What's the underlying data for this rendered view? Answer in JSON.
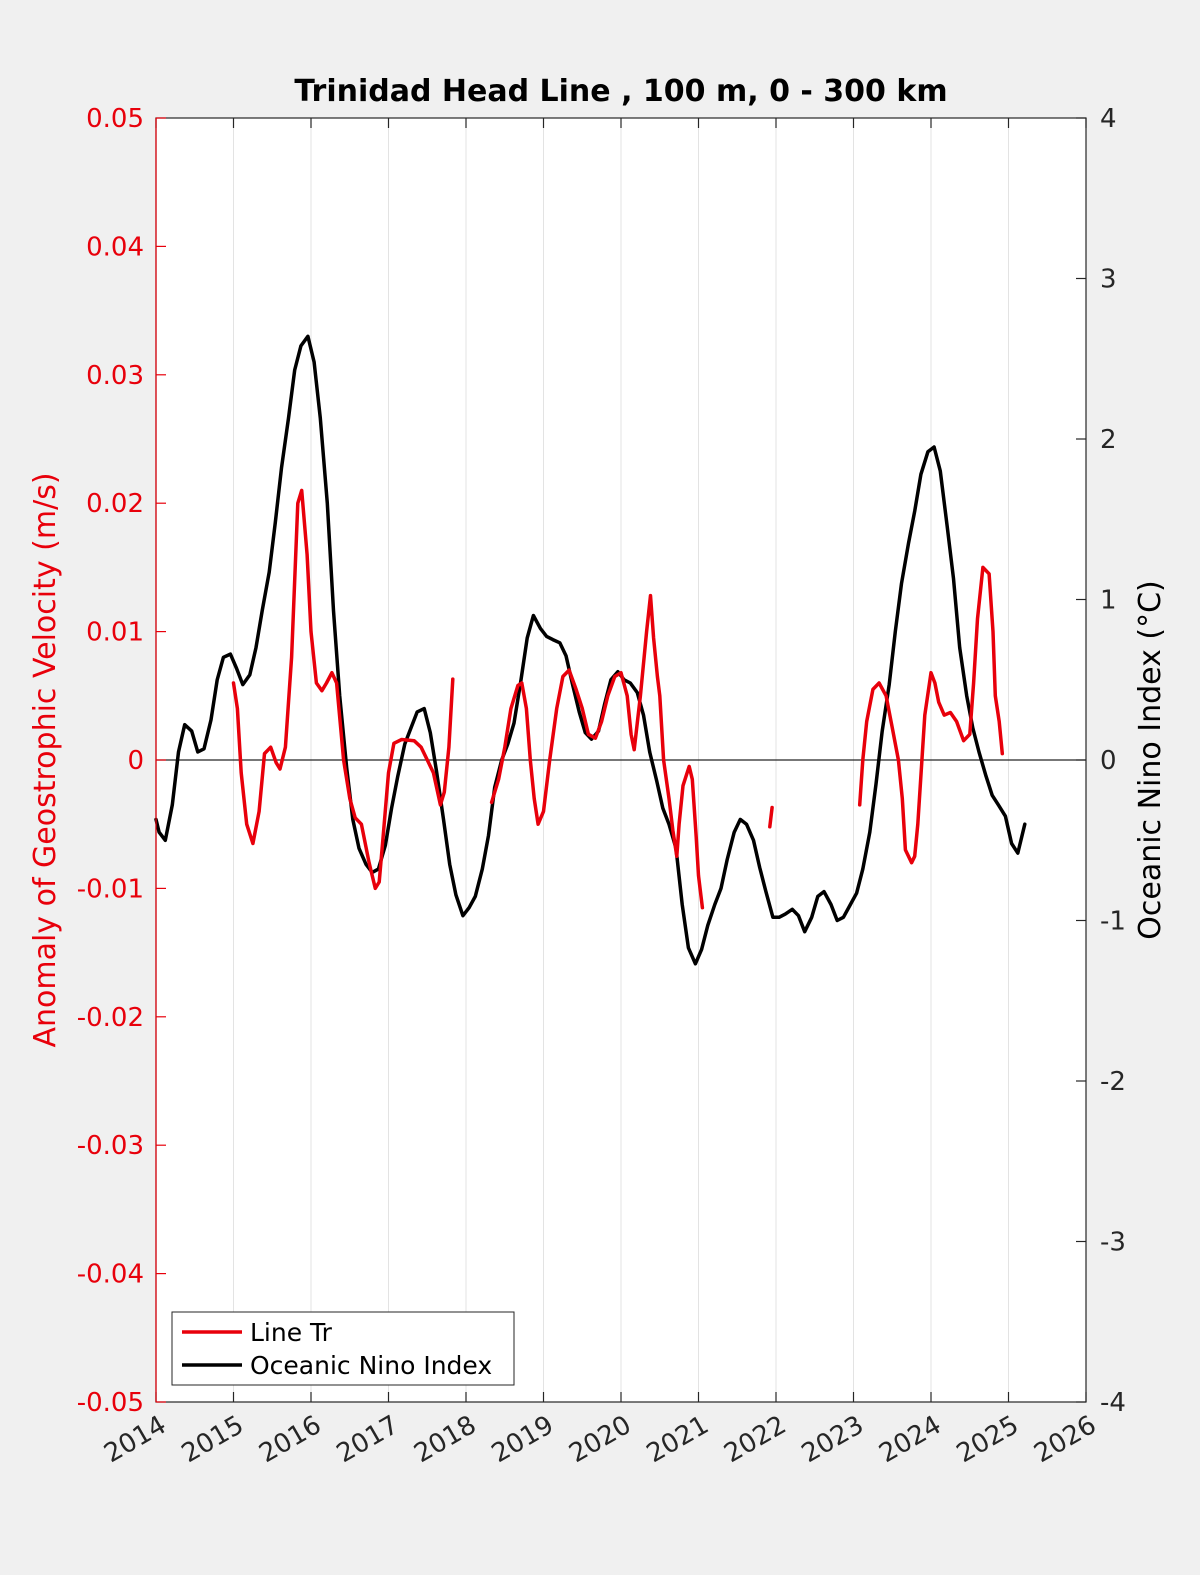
{
  "chart_data": {
    "type": "line",
    "title": "Trinidad Head Line , 100 m, 0 - 300 km",
    "xlim": [
      2014,
      2026
    ],
    "xticks": [
      "2014",
      "2015",
      "2016",
      "2017",
      "2018",
      "2019",
      "2020",
      "2021",
      "2022",
      "2023",
      "2024",
      "2025",
      "2026"
    ],
    "grid": "vertical",
    "left_axis": {
      "label": "Anomaly of Geostrophic Velocity (m/s)",
      "ylim": [
        -0.05,
        0.05
      ],
      "ticks": [
        "0.05",
        "0.04",
        "0.03",
        "0.02",
        "0.01",
        "0",
        "-0.01",
        "-0.02",
        "-0.03",
        "-0.04",
        "-0.05"
      ],
      "color": "#e8000b"
    },
    "right_axis": {
      "label": "Oceanic Nino Index (°C)",
      "ylim": [
        -4,
        4
      ],
      "ticks": [
        "4",
        "3",
        "2",
        "1",
        "0",
        "-1",
        "-2",
        "-3",
        "-4"
      ],
      "color": "#000000"
    },
    "legend": {
      "position": "bottom-left"
    },
    "series": [
      {
        "name": "Line Tr",
        "axis": "left",
        "color": "#e8000b",
        "segments": [
          [
            [
              2015.0,
              0.006
            ],
            [
              2015.05,
              0.004
            ],
            [
              2015.1,
              -0.001
            ],
            [
              2015.17,
              -0.005
            ],
            [
              2015.25,
              -0.0065
            ],
            [
              2015.33,
              -0.004
            ],
            [
              2015.4,
              0.0005
            ],
            [
              2015.48,
              0.001
            ],
            [
              2015.55,
              -0.0002
            ],
            [
              2015.6,
              -0.0007
            ],
            [
              2015.67,
              0.001
            ],
            [
              2015.75,
              0.008
            ],
            [
              2015.83,
              0.02
            ],
            [
              2015.88,
              0.021
            ],
            [
              2015.95,
              0.016
            ],
            [
              2016.0,
              0.01
            ],
            [
              2016.07,
              0.006
            ],
            [
              2016.14,
              0.0054
            ],
            [
              2016.2,
              0.006
            ],
            [
              2016.27,
              0.0068
            ],
            [
              2016.33,
              0.006
            ],
            [
              2016.42,
              0.0
            ],
            [
              2016.5,
              -0.003
            ],
            [
              2016.57,
              -0.0045
            ],
            [
              2016.65,
              -0.005
            ],
            [
              2016.75,
              -0.008
            ],
            [
              2016.83,
              -0.01
            ],
            [
              2016.88,
              -0.0095
            ],
            [
              2016.93,
              -0.006
            ],
            [
              2017.0,
              -0.001
            ],
            [
              2017.07,
              0.0013
            ],
            [
              2017.17,
              0.0016
            ],
            [
              2017.33,
              0.0015
            ],
            [
              2017.42,
              0.001
            ],
            [
              2017.5,
              0.0
            ],
            [
              2017.58,
              -0.001
            ],
            [
              2017.67,
              -0.0035
            ],
            [
              2017.72,
              -0.0025
            ],
            [
              2017.78,
              0.001
            ],
            [
              2017.83,
              0.0063
            ]
          ],
          [
            [
              2018.33,
              -0.0033
            ],
            [
              2018.42,
              -0.0015
            ],
            [
              2018.5,
              0.001
            ],
            [
              2018.58,
              0.004
            ],
            [
              2018.67,
              0.0058
            ],
            [
              2018.72,
              0.006
            ],
            [
              2018.78,
              0.004
            ],
            [
              2018.83,
              0.0
            ],
            [
              2018.88,
              -0.003
            ],
            [
              2018.93,
              -0.005
            ],
            [
              2019.0,
              -0.004
            ],
            [
              2019.08,
              0.0
            ],
            [
              2019.17,
              0.004
            ],
            [
              2019.25,
              0.0065
            ],
            [
              2019.33,
              0.007
            ],
            [
              2019.42,
              0.0055
            ],
            [
              2019.5,
              0.004
            ],
            [
              2019.58,
              0.002
            ],
            [
              2019.67,
              0.0017
            ],
            [
              2019.75,
              0.003
            ],
            [
              2019.83,
              0.005
            ],
            [
              2019.92,
              0.0065
            ],
            [
              2020.0,
              0.0068
            ],
            [
              2020.08,
              0.005
            ],
            [
              2020.13,
              0.002
            ],
            [
              2020.17,
              0.0008
            ],
            [
              2020.25,
              0.005
            ],
            [
              2020.33,
              0.01
            ],
            [
              2020.38,
              0.0128
            ],
            [
              2020.42,
              0.0095
            ],
            [
              2020.47,
              0.0065
            ],
            [
              2020.5,
              0.005
            ],
            [
              2020.55,
              0.0
            ],
            [
              2020.62,
              -0.003
            ],
            [
              2020.67,
              -0.0055
            ],
            [
              2020.72,
              -0.0075
            ],
            [
              2020.75,
              -0.005
            ],
            [
              2020.8,
              -0.002
            ],
            [
              2020.88,
              -0.0005
            ],
            [
              2020.92,
              -0.0015
            ],
            [
              2020.97,
              -0.006
            ],
            [
              2021.0,
              -0.009
            ],
            [
              2021.05,
              -0.0115
            ]
          ],
          [
            [
              2021.92,
              -0.0052
            ],
            [
              2021.95,
              -0.0037
            ]
          ],
          [
            [
              2023.08,
              -0.0035
            ],
            [
              2023.12,
              0.0
            ],
            [
              2023.17,
              0.003
            ],
            [
              2023.25,
              0.0055
            ],
            [
              2023.33,
              0.006
            ],
            [
              2023.42,
              0.005
            ],
            [
              2023.5,
              0.0025
            ],
            [
              2023.58,
              0.0
            ],
            [
              2023.63,
              -0.003
            ],
            [
              2023.67,
              -0.007
            ],
            [
              2023.75,
              -0.008
            ],
            [
              2023.79,
              -0.0075
            ],
            [
              2023.83,
              -0.005
            ],
            [
              2023.92,
              0.0035
            ],
            [
              2024.0,
              0.0068
            ],
            [
              2024.05,
              0.006
            ],
            [
              2024.1,
              0.0045
            ],
            [
              2024.17,
              0.0035
            ],
            [
              2024.25,
              0.0037
            ],
            [
              2024.33,
              0.003
            ],
            [
              2024.42,
              0.0015
            ],
            [
              2024.5,
              0.002
            ],
            [
              2024.55,
              0.006
            ],
            [
              2024.6,
              0.011
            ],
            [
              2024.67,
              0.015
            ],
            [
              2024.75,
              0.0145
            ],
            [
              2024.8,
              0.01
            ],
            [
              2024.83,
              0.005
            ],
            [
              2024.88,
              0.003
            ],
            [
              2024.92,
              0.0005
            ]
          ]
        ]
      },
      {
        "name": "Oceanic Nino Index",
        "axis": "right",
        "color": "#000000",
        "segments": [
          [
            [
              2014.0,
              -0.37
            ],
            [
              2014.04,
              -0.45
            ],
            [
              2014.12,
              -0.5
            ],
            [
              2014.21,
              -0.28
            ],
            [
              2014.29,
              0.05
            ],
            [
              2014.37,
              0.22
            ],
            [
              2014.46,
              0.18
            ],
            [
              2014.54,
              0.05
            ],
            [
              2014.62,
              0.07
            ],
            [
              2014.71,
              0.25
            ],
            [
              2014.79,
              0.5
            ],
            [
              2014.87,
              0.64
            ],
            [
              2014.96,
              0.66
            ],
            [
              2015.04,
              0.57
            ],
            [
              2015.12,
              0.47
            ],
            [
              2015.21,
              0.53
            ],
            [
              2015.29,
              0.7
            ],
            [
              2015.37,
              0.93
            ],
            [
              2015.46,
              1.17
            ],
            [
              2015.54,
              1.48
            ],
            [
              2015.62,
              1.82
            ],
            [
              2015.71,
              2.13
            ],
            [
              2015.79,
              2.43
            ],
            [
              2015.87,
              2.58
            ],
            [
              2015.96,
              2.64
            ],
            [
              2016.04,
              2.48
            ],
            [
              2016.12,
              2.13
            ],
            [
              2016.21,
              1.6
            ],
            [
              2016.29,
              0.93
            ],
            [
              2016.37,
              0.4
            ],
            [
              2016.46,
              -0.05
            ],
            [
              2016.54,
              -0.37
            ],
            [
              2016.62,
              -0.55
            ],
            [
              2016.71,
              -0.65
            ],
            [
              2016.79,
              -0.7
            ],
            [
              2016.87,
              -0.68
            ],
            [
              2016.96,
              -0.53
            ],
            [
              2017.04,
              -0.3
            ],
            [
              2017.12,
              -0.1
            ],
            [
              2017.21,
              0.1
            ],
            [
              2017.29,
              0.2
            ],
            [
              2017.37,
              0.3
            ],
            [
              2017.46,
              0.32
            ],
            [
              2017.54,
              0.17
            ],
            [
              2017.62,
              -0.07
            ],
            [
              2017.71,
              -0.37
            ],
            [
              2017.79,
              -0.65
            ],
            [
              2017.87,
              -0.84
            ],
            [
              2017.96,
              -0.97
            ],
            [
              2018.04,
              -0.92
            ],
            [
              2018.12,
              -0.85
            ],
            [
              2018.21,
              -0.68
            ],
            [
              2018.29,
              -0.47
            ],
            [
              2018.37,
              -0.17
            ],
            [
              2018.46,
              0.0
            ],
            [
              2018.54,
              0.1
            ],
            [
              2018.62,
              0.23
            ],
            [
              2018.71,
              0.5
            ],
            [
              2018.79,
              0.76
            ],
            [
              2018.87,
              0.9
            ],
            [
              2018.96,
              0.82
            ],
            [
              2019.04,
              0.77
            ],
            [
              2019.12,
              0.75
            ],
            [
              2019.21,
              0.73
            ],
            [
              2019.29,
              0.65
            ],
            [
              2019.37,
              0.48
            ],
            [
              2019.46,
              0.3
            ],
            [
              2019.54,
              0.17
            ],
            [
              2019.62,
              0.13
            ],
            [
              2019.71,
              0.18
            ],
            [
              2019.79,
              0.35
            ],
            [
              2019.87,
              0.5
            ],
            [
              2019.96,
              0.55
            ],
            [
              2020.04,
              0.5
            ],
            [
              2020.12,
              0.48
            ],
            [
              2020.21,
              0.42
            ],
            [
              2020.29,
              0.28
            ],
            [
              2020.37,
              0.05
            ],
            [
              2020.46,
              -0.13
            ],
            [
              2020.54,
              -0.3
            ],
            [
              2020.62,
              -0.4
            ],
            [
              2020.71,
              -0.55
            ],
            [
              2020.79,
              -0.9
            ],
            [
              2020.87,
              -1.17
            ],
            [
              2020.96,
              -1.27
            ],
            [
              2021.04,
              -1.18
            ],
            [
              2021.12,
              -1.03
            ],
            [
              2021.21,
              -0.9
            ],
            [
              2021.29,
              -0.8
            ],
            [
              2021.37,
              -0.62
            ],
            [
              2021.46,
              -0.45
            ],
            [
              2021.54,
              -0.37
            ],
            [
              2021.62,
              -0.4
            ],
            [
              2021.71,
              -0.5
            ],
            [
              2021.79,
              -0.67
            ],
            [
              2021.87,
              -0.82
            ],
            [
              2021.96,
              -0.98
            ],
            [
              2022.04,
              -0.98
            ],
            [
              2022.12,
              -0.96
            ],
            [
              2022.21,
              -0.93
            ],
            [
              2022.29,
              -0.97
            ],
            [
              2022.37,
              -1.07
            ],
            [
              2022.46,
              -0.98
            ],
            [
              2022.54,
              -0.85
            ],
            [
              2022.62,
              -0.82
            ],
            [
              2022.71,
              -0.9
            ],
            [
              2022.79,
              -1.0
            ],
            [
              2022.87,
              -0.98
            ],
            [
              2022.96,
              -0.9
            ],
            [
              2023.04,
              -0.83
            ],
            [
              2023.12,
              -0.68
            ],
            [
              2023.21,
              -0.45
            ],
            [
              2023.29,
              -0.15
            ],
            [
              2023.37,
              0.18
            ],
            [
              2023.46,
              0.47
            ],
            [
              2023.54,
              0.8
            ],
            [
              2023.62,
              1.1
            ],
            [
              2023.71,
              1.35
            ],
            [
              2023.79,
              1.55
            ],
            [
              2023.87,
              1.78
            ],
            [
              2023.96,
              1.92
            ],
            [
              2024.04,
              1.95
            ],
            [
              2024.12,
              1.8
            ],
            [
              2024.21,
              1.45
            ],
            [
              2024.29,
              1.13
            ],
            [
              2024.37,
              0.7
            ],
            [
              2024.46,
              0.4
            ],
            [
              2024.54,
              0.2
            ],
            [
              2024.62,
              0.05
            ],
            [
              2024.71,
              -0.1
            ],
            [
              2024.79,
              -0.22
            ],
            [
              2024.87,
              -0.28
            ],
            [
              2024.96,
              -0.35
            ],
            [
              2025.04,
              -0.52
            ],
            [
              2025.12,
              -0.58
            ],
            [
              2025.21,
              -0.4
            ]
          ]
        ]
      }
    ]
  }
}
